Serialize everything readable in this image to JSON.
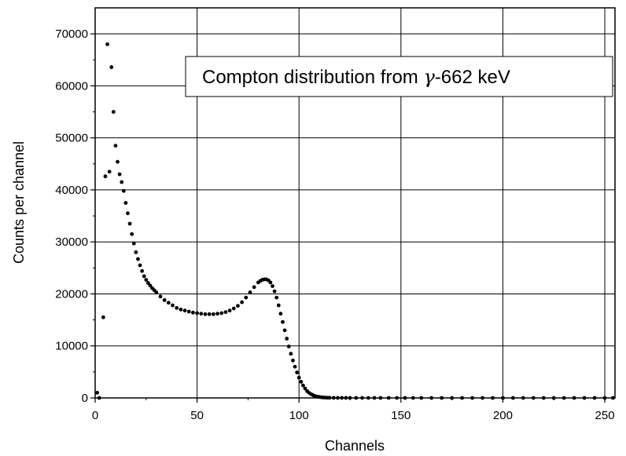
{
  "chart_data": {
    "type": "scatter",
    "title": "",
    "xlabel": "Channels",
    "ylabel": "Counts per channel",
    "xlim": [
      0,
      255
    ],
    "ylim": [
      0,
      75000
    ],
    "x_ticks": [
      0,
      50,
      100,
      150,
      200,
      250
    ],
    "y_ticks": [
      0,
      10000,
      20000,
      30000,
      40000,
      50000,
      60000,
      70000
    ],
    "x_tick_labels": [
      "0",
      "50",
      "100",
      "150",
      "200",
      "250"
    ],
    "y_tick_labels": [
      "0",
      "10000",
      "20000",
      "30000",
      "40000",
      "50000",
      "60000",
      "70000"
    ],
    "grid": true,
    "annotation": {
      "text_prefix": "Compton distribution from ",
      "gamma_symbol": "γ",
      "text_suffix": "-662 keV",
      "placement": "top-right"
    },
    "series": [
      {
        "marker_color": "#000000",
        "x": [
          1,
          2,
          4,
          5,
          6,
          7,
          8,
          9,
          10,
          11,
          12,
          13,
          14,
          15,
          16,
          17,
          18,
          19,
          20,
          21,
          22,
          23,
          24,
          25,
          26,
          27,
          28,
          29,
          30,
          32,
          34,
          36,
          38,
          40,
          42,
          44,
          46,
          48,
          50,
          52,
          54,
          56,
          58,
          60,
          62,
          64,
          66,
          68,
          70,
          72,
          74,
          76,
          78,
          80,
          81,
          82,
          83,
          84,
          85,
          86,
          87,
          88,
          89,
          90,
          91,
          92,
          93,
          94,
          95,
          96,
          97,
          98,
          99,
          100,
          101,
          102,
          103,
          104,
          105,
          106,
          107,
          108,
          109,
          110,
          111,
          112,
          113,
          114,
          115,
          117,
          119,
          121,
          123,
          125,
          128,
          131,
          134,
          137,
          140,
          144,
          148,
          152,
          156,
          160,
          165,
          170,
          175,
          180,
          185,
          190,
          195,
          200,
          205,
          210,
          215,
          220,
          225,
          230,
          235,
          240,
          245,
          250,
          254
        ],
        "y": [
          1000,
          0,
          15500,
          42600,
          68000,
          43500,
          63600,
          55000,
          48500,
          45400,
          43000,
          41500,
          39800,
          37500,
          35500,
          33500,
          31500,
          29700,
          28000,
          26700,
          25500,
          24400,
          23400,
          22700,
          22100,
          21600,
          21100,
          20700,
          20300,
          19500,
          18800,
          18300,
          17800,
          17300,
          17000,
          16800,
          16600,
          16400,
          16300,
          16200,
          16100,
          16100,
          16100,
          16200,
          16300,
          16500,
          16800,
          17200,
          17700,
          18400,
          19300,
          20300,
          21300,
          22200,
          22500,
          22700,
          22800,
          22800,
          22600,
          22200,
          21500,
          20500,
          19300,
          17800,
          16200,
          14600,
          13000,
          11400,
          9900,
          8500,
          7200,
          6000,
          4900,
          3900,
          3100,
          2400,
          1800,
          1300,
          950,
          700,
          500,
          350,
          250,
          180,
          120,
          90,
          60,
          40,
          30,
          20,
          15,
          10,
          8,
          6,
          5,
          4,
          3,
          3,
          2,
          2,
          2,
          1,
          1,
          1,
          1,
          1,
          1,
          1,
          1,
          1,
          1,
          1,
          1,
          1,
          1,
          1,
          1,
          1,
          1,
          1,
          1,
          1,
          1
        ]
      }
    ]
  }
}
